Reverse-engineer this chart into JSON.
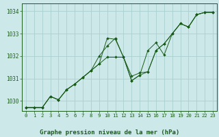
{
  "title": "Graphe pression niveau de la mer (hPa)",
  "bg_color": "#cce8e8",
  "grid_color": "#aacfcf",
  "line_color": "#1a5c1a",
  "marker_color": "#1a5c1a",
  "xlim": [
    -0.5,
    23.5
  ],
  "ylim": [
    1029.55,
    1034.35
  ],
  "yticks": [
    1030,
    1031,
    1032,
    1033,
    1034
  ],
  "xticks": [
    0,
    1,
    2,
    3,
    4,
    5,
    6,
    7,
    8,
    9,
    10,
    11,
    12,
    13,
    14,
    15,
    16,
    17,
    18,
    19,
    20,
    21,
    22,
    23
  ],
  "series1": [
    [
      0,
      1029.7
    ],
    [
      1,
      1029.7
    ],
    [
      2,
      1029.7
    ],
    [
      3,
      1030.2
    ],
    [
      4,
      1030.05
    ],
    [
      5,
      1030.5
    ],
    [
      6,
      1030.75
    ],
    [
      7,
      1031.05
    ],
    [
      8,
      1031.35
    ],
    [
      9,
      1031.65
    ],
    [
      10,
      1031.95
    ],
    [
      11,
      1031.95
    ],
    [
      12,
      1031.95
    ],
    [
      13,
      1031.1
    ],
    [
      14,
      1031.25
    ],
    [
      15,
      1031.3
    ],
    [
      16,
      1032.25
    ],
    [
      17,
      1032.55
    ],
    [
      18,
      1033.0
    ],
    [
      19,
      1033.45
    ],
    [
      20,
      1033.3
    ],
    [
      21,
      1033.85
    ],
    [
      22,
      1033.95
    ],
    [
      23,
      1033.95
    ]
  ],
  "series2": [
    [
      0,
      1029.7
    ],
    [
      1,
      1029.7
    ],
    [
      2,
      1029.7
    ],
    [
      3,
      1030.2
    ],
    [
      4,
      1030.05
    ],
    [
      5,
      1030.5
    ],
    [
      6,
      1030.75
    ],
    [
      7,
      1031.05
    ],
    [
      8,
      1031.35
    ],
    [
      9,
      1031.65
    ],
    [
      10,
      1032.8
    ],
    [
      11,
      1032.75
    ],
    [
      12,
      1031.95
    ],
    [
      13,
      1030.9
    ],
    [
      14,
      1031.15
    ],
    [
      15,
      1032.25
    ],
    [
      16,
      1032.6
    ],
    [
      17,
      1032.05
    ],
    [
      18,
      1033.0
    ],
    [
      19,
      1033.45
    ],
    [
      20,
      1033.3
    ],
    [
      21,
      1033.85
    ],
    [
      22,
      1033.95
    ],
    [
      23,
      1033.95
    ]
  ],
  "series3": [
    [
      0,
      1029.7
    ],
    [
      1,
      1029.7
    ],
    [
      2,
      1029.7
    ],
    [
      3,
      1030.2
    ],
    [
      4,
      1030.05
    ],
    [
      5,
      1030.5
    ],
    [
      6,
      1030.75
    ],
    [
      7,
      1031.05
    ],
    [
      8,
      1031.35
    ],
    [
      9,
      1032.0
    ],
    [
      10,
      1032.45
    ],
    [
      11,
      1032.8
    ],
    [
      12,
      1031.95
    ],
    [
      13,
      1030.9
    ],
    [
      14,
      1031.15
    ],
    [
      15,
      1031.3
    ],
    [
      16,
      1032.25
    ],
    [
      17,
      1032.55
    ],
    [
      18,
      1033.0
    ],
    [
      19,
      1033.45
    ],
    [
      20,
      1033.3
    ],
    [
      21,
      1033.85
    ],
    [
      22,
      1033.95
    ],
    [
      23,
      1033.95
    ]
  ]
}
